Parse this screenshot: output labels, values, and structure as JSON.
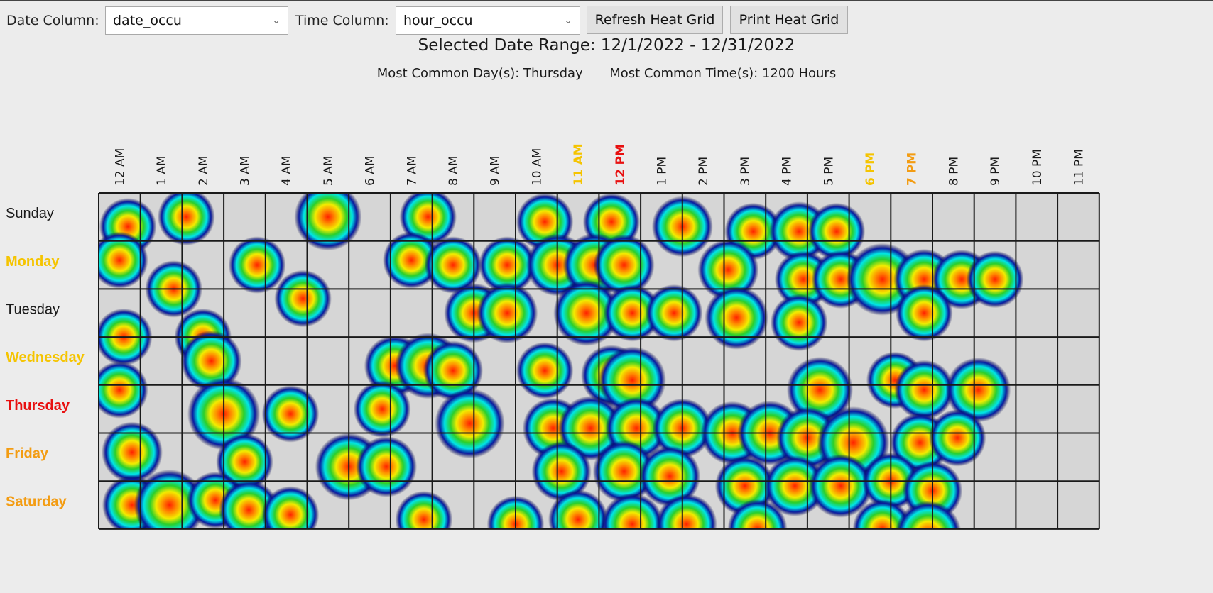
{
  "controls": {
    "date_column_label": "Date Column:",
    "date_column_value": "date_occu",
    "time_column_label": "Time Column:",
    "time_column_value": "hour_occu",
    "refresh_button": "Refresh Heat Grid",
    "print_button": "Print Heat Grid"
  },
  "summary": {
    "date_range": "Selected Date Range: 12/1/2022 - 12/31/2022",
    "common_day": "Most Common Day(s): Thursday",
    "common_time": "Most Common Time(s): 1200 Hours"
  },
  "icons": {
    "dropdown": "chevron-down-icon"
  },
  "colors": {
    "grid_background": "#d6d6d6",
    "grid_line": "#1a1a1a",
    "label_default": "#1a1a1a",
    "label_yellow": "#f5c400",
    "label_orange": "#f39c12",
    "label_red": "#e81010"
  },
  "chart_data": {
    "type": "heatmap",
    "days": [
      {
        "label": "Sunday",
        "highlight": "default"
      },
      {
        "label": "Monday",
        "highlight": "yellow"
      },
      {
        "label": "Tuesday",
        "highlight": "default"
      },
      {
        "label": "Wednesday",
        "highlight": "yellow"
      },
      {
        "label": "Thursday",
        "highlight": "red"
      },
      {
        "label": "Friday",
        "highlight": "orange"
      },
      {
        "label": "Saturday",
        "highlight": "orange"
      }
    ],
    "hours": [
      {
        "label": "12 AM",
        "highlight": "default"
      },
      {
        "label": "1 AM",
        "highlight": "default"
      },
      {
        "label": "2 AM",
        "highlight": "default"
      },
      {
        "label": "3 AM",
        "highlight": "default"
      },
      {
        "label": "4 AM",
        "highlight": "default"
      },
      {
        "label": "5 AM",
        "highlight": "default"
      },
      {
        "label": "6 AM",
        "highlight": "default"
      },
      {
        "label": "7 AM",
        "highlight": "default"
      },
      {
        "label": "8 AM",
        "highlight": "default"
      },
      {
        "label": "9 AM",
        "highlight": "default"
      },
      {
        "label": "10 AM",
        "highlight": "default"
      },
      {
        "label": "11 AM",
        "highlight": "yellow"
      },
      {
        "label": "12 PM",
        "highlight": "red"
      },
      {
        "label": "1 PM",
        "highlight": "default"
      },
      {
        "label": "2 PM",
        "highlight": "default"
      },
      {
        "label": "3 PM",
        "highlight": "default"
      },
      {
        "label": "4 PM",
        "highlight": "default"
      },
      {
        "label": "5 PM",
        "highlight": "default"
      },
      {
        "label": "6 PM",
        "highlight": "yellow"
      },
      {
        "label": "7 PM",
        "highlight": "orange"
      },
      {
        "label": "8 PM",
        "highlight": "default"
      },
      {
        "label": "9 PM",
        "highlight": "default"
      },
      {
        "label": "10 PM",
        "highlight": "default"
      },
      {
        "label": "11 PM",
        "highlight": "default"
      }
    ],
    "points": [
      {
        "day": 0.2,
        "hour": 0.2,
        "intensity": 0.35
      },
      {
        "day": 0.0,
        "hour": 1.6,
        "intensity": 0.35
      },
      {
        "day": 0.0,
        "hour": 5.0,
        "intensity": 0.75
      },
      {
        "day": 0.0,
        "hour": 7.4,
        "intensity": 0.35
      },
      {
        "day": 0.1,
        "hour": 10.2,
        "intensity": 0.35
      },
      {
        "day": 0.1,
        "hour": 11.8,
        "intensity": 0.35
      },
      {
        "day": 0.2,
        "hour": 13.5,
        "intensity": 0.5
      },
      {
        "day": 0.3,
        "hour": 15.2,
        "intensity": 0.35
      },
      {
        "day": 0.3,
        "hour": 16.3,
        "intensity": 0.45
      },
      {
        "day": 0.3,
        "hour": 17.2,
        "intensity": 0.35
      },
      {
        "day": 0.9,
        "hour": 0.0,
        "intensity": 0.35
      },
      {
        "day": 1.0,
        "hour": 3.3,
        "intensity": 0.35
      },
      {
        "day": 0.9,
        "hour": 7.0,
        "intensity": 0.35
      },
      {
        "day": 1.0,
        "hour": 8.0,
        "intensity": 0.35
      },
      {
        "day": 1.0,
        "hour": 9.3,
        "intensity": 0.35
      },
      {
        "day": 1.0,
        "hour": 10.5,
        "intensity": 0.55
      },
      {
        "day": 1.0,
        "hour": 11.4,
        "intensity": 0.6
      },
      {
        "day": 1.0,
        "hour": 12.1,
        "intensity": 0.5
      },
      {
        "day": 1.1,
        "hour": 14.6,
        "intensity": 0.5
      },
      {
        "day": 1.3,
        "hour": 16.4,
        "intensity": 0.35
      },
      {
        "day": 1.3,
        "hour": 17.3,
        "intensity": 0.4
      },
      {
        "day": 1.3,
        "hour": 18.3,
        "intensity": 0.95
      },
      {
        "day": 1.3,
        "hour": 19.3,
        "intensity": 0.5
      },
      {
        "day": 1.3,
        "hour": 20.2,
        "intensity": 0.45
      },
      {
        "day": 1.3,
        "hour": 21.0,
        "intensity": 0.35
      },
      {
        "day": 1.5,
        "hour": 1.3,
        "intensity": 0.35
      },
      {
        "day": 1.7,
        "hour": 4.4,
        "intensity": 0.35
      },
      {
        "day": 2.0,
        "hour": 8.5,
        "intensity": 0.45
      },
      {
        "day": 2.0,
        "hour": 9.3,
        "intensity": 0.5
      },
      {
        "day": 2.0,
        "hour": 11.2,
        "intensity": 0.7
      },
      {
        "day": 2.0,
        "hour": 12.3,
        "intensity": 0.35
      },
      {
        "day": 2.0,
        "hour": 13.3,
        "intensity": 0.35
      },
      {
        "day": 2.1,
        "hour": 14.8,
        "intensity": 0.6
      },
      {
        "day": 2.2,
        "hour": 16.3,
        "intensity": 0.35
      },
      {
        "day": 2.0,
        "hour": 19.3,
        "intensity": 0.35
      },
      {
        "day": 2.5,
        "hour": 0.1,
        "intensity": 0.35
      },
      {
        "day": 2.5,
        "hour": 2.0,
        "intensity": 0.35
      },
      {
        "day": 3.0,
        "hour": 2.2,
        "intensity": 0.5
      },
      {
        "day": 3.1,
        "hour": 6.6,
        "intensity": 0.5
      },
      {
        "day": 3.1,
        "hour": 7.4,
        "intensity": 0.7
      },
      {
        "day": 3.2,
        "hour": 8.0,
        "intensity": 0.45
      },
      {
        "day": 3.2,
        "hour": 10.2,
        "intensity": 0.35
      },
      {
        "day": 3.3,
        "hour": 11.8,
        "intensity": 0.5
      },
      {
        "day": 3.4,
        "hour": 12.3,
        "intensity": 0.75
      },
      {
        "day": 3.6,
        "hour": 16.8,
        "intensity": 0.7
      },
      {
        "day": 3.4,
        "hour": 18.6,
        "intensity": 0.35
      },
      {
        "day": 3.6,
        "hour": 19.3,
        "intensity": 0.45
      },
      {
        "day": 3.6,
        "hour": 20.6,
        "intensity": 0.65
      },
      {
        "day": 3.6,
        "hour": 0.0,
        "intensity": 0.35
      },
      {
        "day": 4.1,
        "hour": 2.5,
        "intensity": 0.95
      },
      {
        "day": 4.1,
        "hour": 4.1,
        "intensity": 0.35
      },
      {
        "day": 4.0,
        "hour": 6.3,
        "intensity": 0.35
      },
      {
        "day": 4.3,
        "hour": 8.4,
        "intensity": 0.85
      },
      {
        "day": 4.4,
        "hour": 10.4,
        "intensity": 0.5
      },
      {
        "day": 4.4,
        "hour": 11.3,
        "intensity": 0.65
      },
      {
        "day": 4.4,
        "hour": 12.4,
        "intensity": 0.55
      },
      {
        "day": 4.4,
        "hour": 13.5,
        "intensity": 0.45
      },
      {
        "day": 4.5,
        "hour": 14.7,
        "intensity": 0.6
      },
      {
        "day": 4.5,
        "hour": 15.6,
        "intensity": 0.65
      },
      {
        "day": 4.6,
        "hour": 16.5,
        "intensity": 0.55
      },
      {
        "day": 4.7,
        "hour": 17.6,
        "intensity": 0.95
      },
      {
        "day": 4.7,
        "hour": 19.2,
        "intensity": 0.45
      },
      {
        "day": 4.6,
        "hour": 20.1,
        "intensity": 0.35
      },
      {
        "day": 4.9,
        "hour": 0.3,
        "intensity": 0.5
      },
      {
        "day": 5.1,
        "hour": 3.0,
        "intensity": 0.35
      },
      {
        "day": 5.2,
        "hour": 5.5,
        "intensity": 0.75
      },
      {
        "day": 5.2,
        "hour": 6.4,
        "intensity": 0.5
      },
      {
        "day": 5.3,
        "hour": 10.6,
        "intensity": 0.45
      },
      {
        "day": 5.3,
        "hour": 12.1,
        "intensity": 0.55
      },
      {
        "day": 5.4,
        "hour": 13.2,
        "intensity": 0.5
      },
      {
        "day": 5.6,
        "hour": 15.0,
        "intensity": 0.45
      },
      {
        "day": 5.6,
        "hour": 16.2,
        "intensity": 0.5
      },
      {
        "day": 5.6,
        "hour": 17.3,
        "intensity": 0.6
      },
      {
        "day": 5.5,
        "hour": 18.5,
        "intensity": 0.35
      },
      {
        "day": 5.7,
        "hour": 19.5,
        "intensity": 0.45
      },
      {
        "day": 6.0,
        "hour": 0.3,
        "intensity": 0.45
      },
      {
        "day": 6.0,
        "hour": 1.2,
        "intensity": 0.9
      },
      {
        "day": 5.9,
        "hour": 2.3,
        "intensity": 0.35
      },
      {
        "day": 6.1,
        "hour": 3.1,
        "intensity": 0.45
      },
      {
        "day": 6.2,
        "hour": 4.1,
        "intensity": 0.35
      },
      {
        "day": 6.3,
        "hour": 7.3,
        "intensity": 0.35
      },
      {
        "day": 6.4,
        "hour": 9.5,
        "intensity": 0.35
      },
      {
        "day": 6.3,
        "hour": 11.0,
        "intensity": 0.45
      },
      {
        "day": 6.4,
        "hour": 12.3,
        "intensity": 0.55
      },
      {
        "day": 6.4,
        "hour": 13.6,
        "intensity": 0.5
      },
      {
        "day": 6.5,
        "hour": 15.3,
        "intensity": 0.45
      },
      {
        "day": 6.5,
        "hour": 18.3,
        "intensity": 0.45
      },
      {
        "day": 6.6,
        "hour": 19.4,
        "intensity": 0.7
      }
    ]
  }
}
